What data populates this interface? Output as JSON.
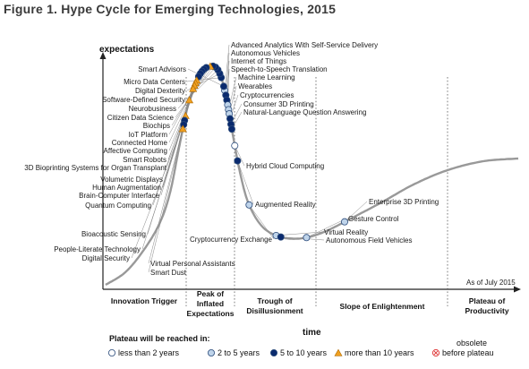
{
  "figure_title": "Figure 1. Hype Cycle for Emerging Technologies, 2015",
  "colors": {
    "curve": "#999999",
    "dark": "#0a2a6e",
    "light": "#bfd4ea",
    "hollow": "#ffffff",
    "triangle": "#f0a020",
    "obsolete": "#e04040",
    "outline": "#2a4a7a"
  },
  "chart_data": {
    "type": "scatter",
    "title": "Hype Cycle for Emerging Technologies, 2015",
    "xlabel": "time",
    "ylabel": "expectations",
    "as_of": "As of July 2015",
    "phases": [
      "Innovation Trigger",
      "Peak of Inflated Expectations",
      "Trough of Disillusionment",
      "Slope of Enlightenment",
      "Plateau of Productivity"
    ],
    "legend": {
      "title": "Plateau will be reached in:",
      "items": [
        {
          "symbol": "hollow",
          "label": "less than 2 years"
        },
        {
          "symbol": "light",
          "label": "2 to 5 years"
        },
        {
          "symbol": "dark",
          "label": "5 to 10 years"
        },
        {
          "symbol": "triangle",
          "label": "more than 10 years"
        },
        {
          "symbol": "obsolete",
          "label": "obsolete before plateau"
        }
      ]
    },
    "technologies": [
      {
        "name": "Advanced Analytics With Self-Service Delivery",
        "symbol": "light",
        "t": 0.403
      },
      {
        "name": "Autonomous Vehicles",
        "symbol": "dark",
        "t": 0.41
      },
      {
        "name": "Internet of Things",
        "symbol": "dark",
        "t": 0.417
      },
      {
        "name": "Speech-to-Speech Translation",
        "symbol": "light",
        "t": 0.424
      },
      {
        "name": "Machine Learning",
        "symbol": "light",
        "t": 0.431
      },
      {
        "name": "Wearables",
        "symbol": "light",
        "t": 0.437
      },
      {
        "name": "Cryptocurrencies",
        "symbol": "dark",
        "t": 0.444
      },
      {
        "name": "Consumer 3D Printing",
        "symbol": "dark",
        "t": 0.452
      },
      {
        "name": "Natural-Language Question Answering",
        "symbol": "dark",
        "t": 0.459
      },
      {
        "name": "Smart Advisors",
        "symbol": "dark",
        "t": 0.397
      },
      {
        "name": "Micro Data Centers",
        "symbol": "dark",
        "t": 0.384
      },
      {
        "name": "Digital Dexterity",
        "symbol": "dark",
        "t": 0.378
      },
      {
        "name": "Software-Defined Security",
        "symbol": "dark",
        "t": 0.372
      },
      {
        "name": "Neurobusiness",
        "symbol": "dark",
        "t": 0.367
      },
      {
        "name": "Citizen Data Science",
        "symbol": "dark",
        "t": 0.363
      },
      {
        "name": "Biochips",
        "symbol": "triangle",
        "t": 0.359
      },
      {
        "name": "IoT Platform",
        "symbol": "dark",
        "t": 0.353
      },
      {
        "name": "Connected Home",
        "symbol": "dark",
        "t": 0.349
      },
      {
        "name": "Affective Computing",
        "symbol": "dark",
        "t": 0.345
      },
      {
        "name": "Smart Robots",
        "symbol": "dark",
        "t": 0.341
      },
      {
        "name": "3D Bioprinting Systems for Organ Transplant",
        "symbol": "dark",
        "t": 0.336
      },
      {
        "name": "Volumetric Displays",
        "symbol": "triangle",
        "t": 0.33
      },
      {
        "name": "Human Augmentation",
        "symbol": "triangle",
        "t": 0.326
      },
      {
        "name": "Brain-Computer Interface",
        "symbol": "triangle",
        "t": 0.322
      },
      {
        "name": "Quantum Computing",
        "symbol": "triangle",
        "t": 0.317
      },
      {
        "name": "Bioacoustic Sensing",
        "symbol": "triangle",
        "t": 0.3
      },
      {
        "name": "People-Literate Technology",
        "symbol": "triangle",
        "t": 0.277
      },
      {
        "name": "Digital Security",
        "symbol": "dark",
        "t": 0.27
      },
      {
        "name": "Virtual Personal Assistants",
        "symbol": "dark",
        "t": 0.264
      },
      {
        "name": "Smart Dust",
        "symbol": "triangle",
        "t": 0.258
      },
      {
        "name": "Hybrid Cloud Computing",
        "symbol": "hollow",
        "t": 0.483
      },
      {
        "name": "Augmented Reality",
        "symbol": "dark",
        "t": 0.505
      },
      {
        "name": "Cryptocurrency Exchange",
        "symbol": "light",
        "t": 0.57
      },
      {
        "name": "Virtual Reality",
        "symbol": "light",
        "t": 0.63
      },
      {
        "name": "Autonomous Field Vehicles",
        "symbol": "dark",
        "t": 0.637
      },
      {
        "name": "Gesture Control",
        "symbol": "light",
        "t": 0.674
      },
      {
        "name": "Enterprise 3D Printing",
        "symbol": "light",
        "t": 0.733
      }
    ]
  }
}
